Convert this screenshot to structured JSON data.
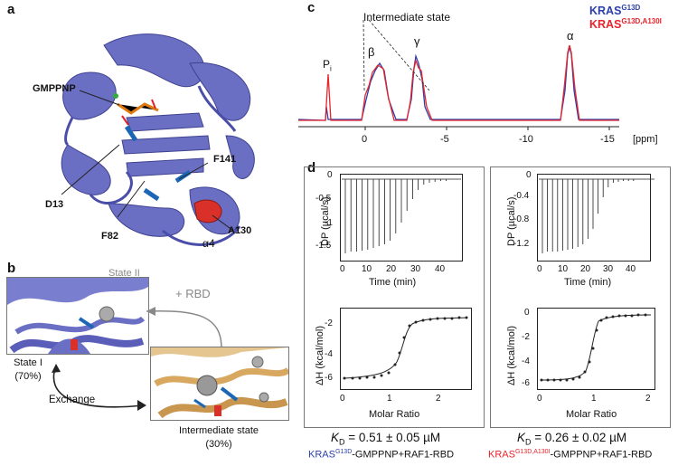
{
  "panels": {
    "a": "a",
    "b": "b",
    "c": "c",
    "d": "d"
  },
  "panel_a": {
    "labels": {
      "gmppnp": "GMPPNP",
      "d13": "D13",
      "f141": "F141",
      "f82": "F82",
      "a130": "A130",
      "alpha4": "α4"
    }
  },
  "panel_b": {
    "state2": "State II",
    "rbd": "+ RBD",
    "state1": "State I",
    "state1_pct": "(70%)",
    "exchange": "Exchange",
    "intermediate": "Intermediate state",
    "intermediate_pct": "(30%)"
  },
  "panel_c": {
    "intermediate_label": "Intermediate state",
    "peaks": {
      "pi": "P",
      "pi_sub": "i",
      "beta": "β",
      "gamma": "γ",
      "alpha": "α"
    },
    "legend": [
      {
        "name": "KRAS",
        "sup": "G13D",
        "color": "#2a3fa8"
      },
      {
        "name": "KRAS",
        "sup": "G13D,A130I",
        "color": "#e8232b"
      }
    ],
    "ticks": [
      "0",
      "-5",
      "-10",
      "-15"
    ],
    "unit": "[ppm]"
  },
  "panel_d": {
    "left": {
      "top_ylabel": "DP (µcal/s)",
      "top_yticks": [
        "0",
        "-0.5",
        "-1",
        "-1.5"
      ],
      "top_xticks": [
        "0",
        "10",
        "20",
        "30",
        "40"
      ],
      "top_xlabel": "Time (min)",
      "bot_ylabel": "ΔH (kcal/mol)",
      "bot_yticks": [
        "-2",
        "-4",
        "-6"
      ],
      "bot_xticks": [
        "0",
        "1",
        "2"
      ],
      "bot_xlabel": "Molar Ratio",
      "kd_label": "K",
      "kd_sub": "D",
      "kd_value": "= 0.51 ± 0.05 µM",
      "complex_name": "KRAS",
      "complex_sup": "G13D",
      "complex_rest": "-GMPPNP+RAF1-RBD"
    },
    "right": {
      "top_ylabel": "DP (µcal/s)",
      "top_yticks": [
        "0",
        "-0.4",
        "-0.8",
        "-1.2"
      ],
      "top_xticks": [
        "0",
        "10",
        "20",
        "30",
        "40"
      ],
      "top_xlabel": "Time (min)",
      "bot_ylabel": "ΔH (kcal/mol)",
      "bot_yticks": [
        "0",
        "-2",
        "-4",
        "-6"
      ],
      "bot_xticks": [
        "0",
        "1",
        "2"
      ],
      "bot_xlabel": "Molar Ratio",
      "kd_label": "K",
      "kd_sub": "D",
      "kd_value": "= 0.26 ± 0.02 µM",
      "complex_name": "KRAS",
      "complex_sup": "G13D,A130I",
      "complex_rest": "-GMPPNP+RAF1-RBD"
    }
  },
  "colors": {
    "protein": "#6b6fc4",
    "highlight_red": "#d9302a",
    "orange": "#d8a860",
    "spectrum_blue": "#2a3fa8",
    "spectrum_red": "#e8232b"
  }
}
